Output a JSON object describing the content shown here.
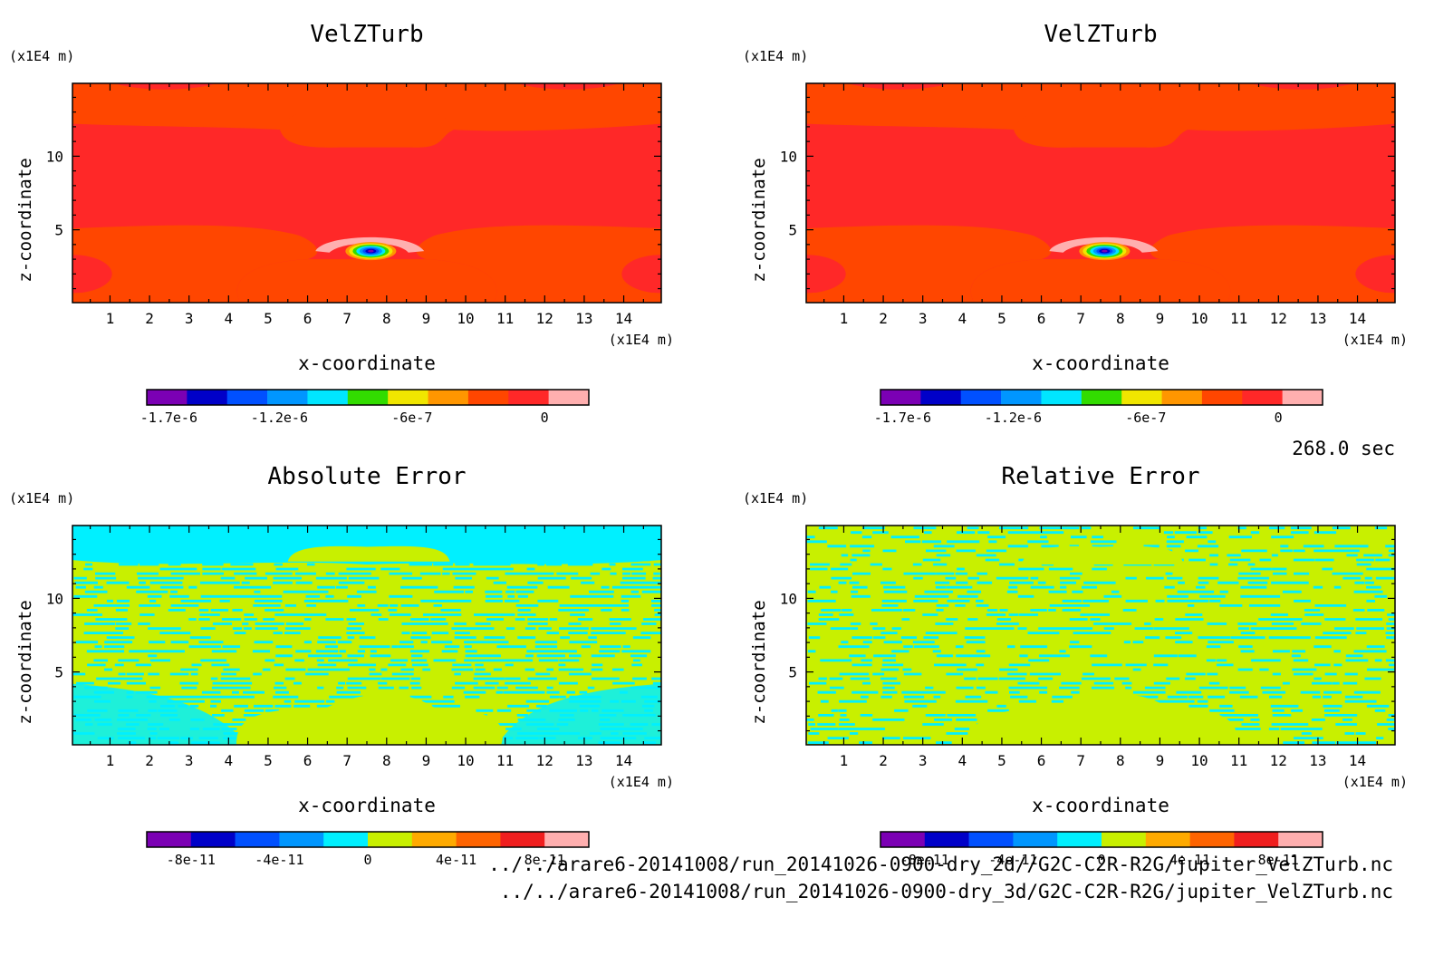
{
  "time_label": "268.0 sec",
  "files": [
    "../../arare6-20141008/run_20141026-0900-dry_2d//G2C-C2R-R2G/jupiter_VelZTurb.nc",
    "../../arare6-20141008/run_20141026-0900-dry_3d/G2C-C2R-R2G/jupiter_VelZTurb.nc"
  ],
  "chart_data": [
    {
      "type": "heatmap",
      "title": "VelZTurb",
      "xlabel": "x-coordinate",
      "ylabel": "z-coordinate",
      "x_unit": "(x1E4 m)",
      "y_unit": "(x1E4 m)",
      "x_ticks": [
        1,
        2,
        3,
        4,
        5,
        6,
        7,
        8,
        9,
        10,
        11,
        12,
        13,
        14
      ],
      "y_ticks": [
        5,
        10
      ],
      "xlim": [
        0.05,
        14.95
      ],
      "ylim": [
        0.05,
        14.95
      ],
      "colorbar": {
        "colors": [
          "#7b00b4",
          "#0000c8",
          "#0050ff",
          "#0096ff",
          "#00e6ff",
          "#32dc00",
          "#f0e600",
          "#ff9600",
          "#ff4600",
          "#ff2828",
          "#ffafaf"
        ],
        "tick_labels": [
          "-1.7e-6",
          "-1.2e-6",
          "-6e-7",
          "0"
        ],
        "tick_values": [
          -1.7e-06,
          -1.2e-06,
          -6e-07,
          0
        ],
        "range": [
          -1.8e-06,
          2e-07
        ]
      },
      "field": "velzturb"
    },
    {
      "type": "heatmap",
      "title": "VelZTurb",
      "xlabel": "x-coordinate",
      "ylabel": "z-coordinate",
      "x_unit": "(x1E4 m)",
      "y_unit": "(x1E4 m)",
      "x_ticks": [
        1,
        2,
        3,
        4,
        5,
        6,
        7,
        8,
        9,
        10,
        11,
        12,
        13,
        14
      ],
      "y_ticks": [
        5,
        10
      ],
      "xlim": [
        0.05,
        14.95
      ],
      "ylim": [
        0.05,
        14.95
      ],
      "colorbar": {
        "colors": [
          "#7b00b4",
          "#0000c8",
          "#0050ff",
          "#0096ff",
          "#00e6ff",
          "#32dc00",
          "#f0e600",
          "#ff9600",
          "#ff4600",
          "#ff2828",
          "#ffafaf"
        ],
        "tick_labels": [
          "-1.7e-6",
          "-1.2e-6",
          "-6e-7",
          "0"
        ],
        "tick_values": [
          -1.7e-06,
          -1.2e-06,
          -6e-07,
          0
        ],
        "range": [
          -1.8e-06,
          2e-07
        ]
      },
      "field": "velzturb"
    },
    {
      "type": "heatmap",
      "title": "Absolute Error",
      "xlabel": "x-coordinate",
      "ylabel": "z-coordinate",
      "x_unit": "(x1E4 m)",
      "y_unit": "(x1E4 m)",
      "x_ticks": [
        1,
        2,
        3,
        4,
        5,
        6,
        7,
        8,
        9,
        10,
        11,
        12,
        13,
        14
      ],
      "y_ticks": [
        5,
        10
      ],
      "xlim": [
        0.05,
        14.95
      ],
      "ylim": [
        0.05,
        14.95
      ],
      "colorbar": {
        "colors": [
          "#7b00b4",
          "#0000c8",
          "#0050ff",
          "#0096ff",
          "#00f0ff",
          "#c8f000",
          "#ffaa00",
          "#ff6400",
          "#f01e1e",
          "#ffafaf"
        ],
        "tick_labels": [
          "-8e-11",
          "-4e-11",
          "0",
          "4e-11",
          "8e-11"
        ],
        "tick_values": [
          -8e-11,
          -4e-11,
          0,
          4e-11,
          8e-11
        ],
        "range": [
          -1e-10,
          1e-10
        ]
      },
      "field": "abs_error"
    },
    {
      "type": "heatmap",
      "title": "Relative Error",
      "xlabel": "x-coordinate",
      "ylabel": "z-coordinate",
      "x_unit": "(x1E4 m)",
      "y_unit": "(x1E4 m)",
      "x_ticks": [
        1,
        2,
        3,
        4,
        5,
        6,
        7,
        8,
        9,
        10,
        11,
        12,
        13,
        14
      ],
      "y_ticks": [
        5,
        10
      ],
      "xlim": [
        0.05,
        14.95
      ],
      "ylim": [
        0.05,
        14.95
      ],
      "colorbar": {
        "colors": [
          "#7b00b4",
          "#0000c8",
          "#0050ff",
          "#0096ff",
          "#00f0ff",
          "#c8f000",
          "#ffaa00",
          "#ff6400",
          "#f01e1e",
          "#ffafaf"
        ],
        "tick_labels": [
          "-8e-11",
          "-4e-11",
          "0",
          "4e-11",
          "8e-11"
        ],
        "tick_values": [
          -8e-11,
          -4e-11,
          0,
          4e-11,
          8e-11
        ],
        "range": [
          -1e-10,
          1e-10
        ]
      },
      "field": "rel_error"
    }
  ]
}
